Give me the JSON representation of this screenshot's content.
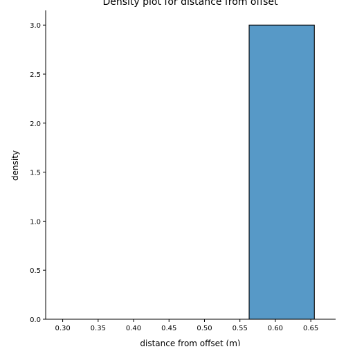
{
  "chart_data": {
    "type": "bar",
    "title": "Density plot for distance from offset",
    "xlabel": "distance from offset (m)",
    "ylabel": "density",
    "xlim": [
      0.276,
      0.685
    ],
    "ylim": [
      0,
      3.15
    ],
    "x_ticks": [
      "0.30",
      "0.35",
      "0.40",
      "0.45",
      "0.50",
      "0.55",
      "0.60",
      "0.65"
    ],
    "y_ticks": [
      "0.0",
      "0.5",
      "1.0",
      "1.5",
      "2.0",
      "2.5",
      "3.0"
    ],
    "bins": [
      {
        "x0": 0.29,
        "x1": 0.381,
        "value": 0
      },
      {
        "x0": 0.381,
        "x1": 0.472,
        "value": 0
      },
      {
        "x0": 0.472,
        "x1": 0.563,
        "value": 0
      },
      {
        "x0": 0.563,
        "x1": 0.655,
        "value": 3
      }
    ],
    "grid": false,
    "colors": {
      "bar_fill": "#5799c7",
      "bar_edge": "#000000"
    }
  }
}
